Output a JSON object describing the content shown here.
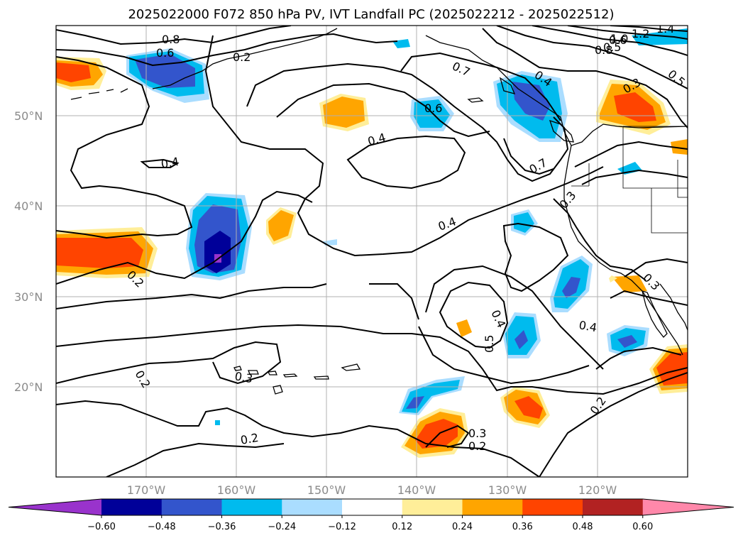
{
  "title": "2025022000 F072 850 hPa PV, IVT Landfall PC (2025022212 - 2025022512)",
  "lat_labels": [
    "50°N",
    "40°N",
    "30°N",
    "20°N"
  ],
  "lon_labels": [
    "170°W",
    "160°W",
    "150°W",
    "140°W",
    "130°W",
    "120°W"
  ],
  "colorbar": {
    "ticks": [
      "−0.60",
      "−0.48",
      "−0.36",
      "−0.24",
      "−0.12",
      "0.12",
      "0.24",
      "0.36",
      "0.48",
      "0.60"
    ],
    "colors": [
      "#9933cc",
      "#000099",
      "#3355cc",
      "#00bbee",
      "#aaddff",
      "#ffffff",
      "#ffee99",
      "#ffa500",
      "#ff4400",
      "#b22222",
      "#ff88aa"
    ]
  },
  "contour_labels": [
    "0.8",
    "0.6",
    "0.2",
    "0.5",
    "0.8",
    "1.0",
    "1.2",
    "1.4",
    "0.6",
    "0.7",
    "0.4",
    "0.5",
    "0.3",
    "0.6",
    "0.4",
    "0.4",
    "0.7",
    "0.3",
    "0.4",
    "0.2",
    "0.4",
    "0.5",
    "0.4",
    "0.3",
    "0.2",
    "0.3",
    "0.2",
    "0.3",
    "0.2",
    "0.2"
  ],
  "map_region": {
    "lon_range": [
      -180,
      -110
    ],
    "lat_range": [
      10,
      60
    ],
    "projection": "PlateCarree",
    "grid": true,
    "field": "850 hPa PV, IVT Landfall PC",
    "init": "2025022000",
    "forecast_hour": "F072",
    "valid_window": "2025022212 - 2025022512"
  }
}
